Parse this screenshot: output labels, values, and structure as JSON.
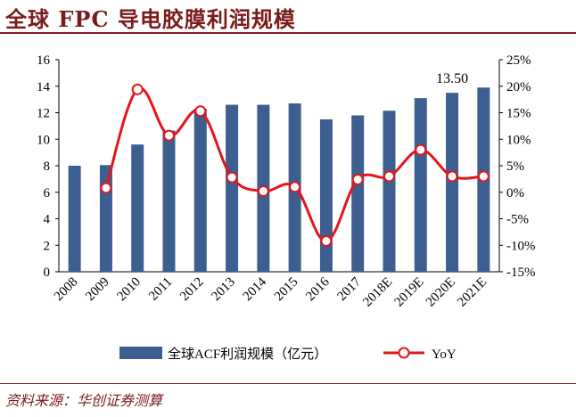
{
  "title": "全球 FPC 导电胶膜利润规模",
  "source": "资料来源：华创证券测算",
  "colors": {
    "bar": "#3d5f8f",
    "line": "#e3161b",
    "accent": "#8b1c1c"
  },
  "chart_data": {
    "type": "bar",
    "categories": [
      "2008",
      "2009",
      "2010",
      "2011",
      "2012",
      "2013",
      "2014",
      "2015",
      "2016",
      "2017",
      "2018E",
      "2019E",
      "2020E",
      "2021E"
    ],
    "series": [
      {
        "name": "全球ACF利润规模（亿元）",
        "type": "bar",
        "axis": "left",
        "values": [
          8.0,
          8.05,
          9.6,
          10.65,
          12.3,
          12.6,
          12.6,
          12.7,
          11.5,
          11.8,
          12.15,
          13.1,
          13.5,
          13.9
        ]
      },
      {
        "name": "YoY",
        "type": "line",
        "axis": "right",
        "unit": "%",
        "values": [
          null,
          0.8,
          19.4,
          10.7,
          15.3,
          2.8,
          0.2,
          1.0,
          -9.2,
          2.4,
          3.0,
          8.0,
          3.0,
          3.0
        ]
      }
    ],
    "left_axis": {
      "min": 0,
      "max": 16,
      "ticks": [
        "0",
        "2",
        "4",
        "6",
        "8",
        "10",
        "12",
        "14",
        "16"
      ]
    },
    "right_axis": {
      "min": -15,
      "max": 25,
      "ticks": [
        "-15%",
        "-10%",
        "-5%",
        "0%",
        "5%",
        "10%",
        "15%",
        "20%",
        "25%"
      ]
    },
    "annotations": [
      {
        "category": "2020E",
        "text": "13.50"
      }
    ],
    "legend": {
      "position": "bottom",
      "bar_label": "全球ACF利润规模（亿元）",
      "line_label": "YoY"
    },
    "grid": false
  }
}
